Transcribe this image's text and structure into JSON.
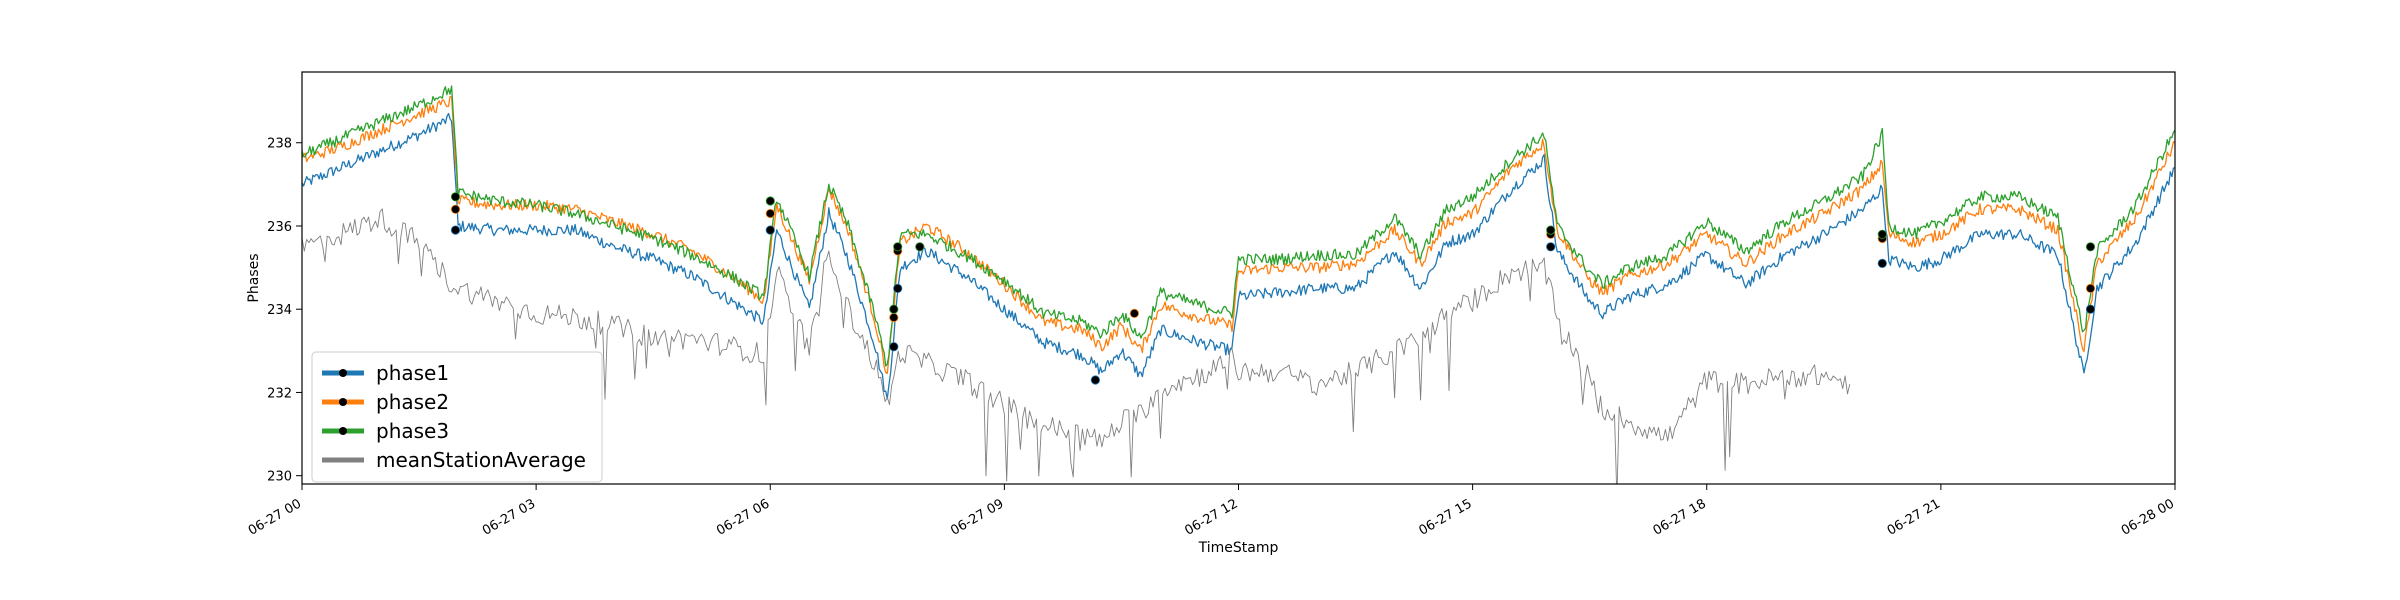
{
  "chart_data": {
    "type": "line",
    "xlabel": "TimeStamp",
    "ylabel": "Phases",
    "xlim": [
      "06-27 00:00",
      "06-28 00:00"
    ],
    "ylim": [
      229.8,
      239.7
    ],
    "x_ticks": [
      "06-27 00",
      "06-27 03",
      "06-27 06",
      "06-27 09",
      "06-27 12",
      "06-27 15",
      "06-27 18",
      "06-27 21",
      "06-28 00"
    ],
    "y_ticks": [
      230,
      232,
      234,
      236,
      238
    ],
    "legend_position": "lower-left",
    "grid": false,
    "series": [
      {
        "name": "phase1",
        "color": "#1f77b4",
        "marker": "black-dot",
        "points": [
          [
            "06-27 00:00",
            237.0
          ],
          [
            "06-27 00:30",
            237.4
          ],
          [
            "06-27 01:00",
            237.8
          ],
          [
            "06-27 01:30",
            238.2
          ],
          [
            "06-27 01:55",
            238.6
          ],
          [
            "06-27 02:00",
            236.0
          ],
          [
            "06-27 02:30",
            235.9
          ],
          [
            "06-27 03:00",
            235.9
          ],
          [
            "06-27 03:30",
            235.9
          ],
          [
            "06-27 04:00",
            235.5
          ],
          [
            "06-27 04:30",
            235.2
          ],
          [
            "06-27 05:00",
            234.8
          ],
          [
            "06-27 05:30",
            234.2
          ],
          [
            "06-27 05:55",
            233.7
          ],
          [
            "06-27 06:05",
            235.9
          ],
          [
            "06-27 06:30",
            234.0
          ],
          [
            "06-27 06:45",
            236.3
          ],
          [
            "06-27 07:00",
            235.2
          ],
          [
            "06-27 07:20",
            233.2
          ],
          [
            "06-27 07:30",
            231.8
          ],
          [
            "06-27 07:40",
            235.0
          ],
          [
            "06-27 08:00",
            235.4
          ],
          [
            "06-27 08:30",
            234.8
          ],
          [
            "06-27 09:00",
            234.0
          ],
          [
            "06-27 09:30",
            233.2
          ],
          [
            "06-27 10:00",
            232.9
          ],
          [
            "06-27 10:15",
            232.5
          ],
          [
            "06-27 10:30",
            233.0
          ],
          [
            "06-27 10:45",
            232.4
          ],
          [
            "06-27 11:00",
            233.5
          ],
          [
            "06-27 11:30",
            233.2
          ],
          [
            "06-27 11:55",
            233.0
          ],
          [
            "06-27 12:00",
            234.3
          ],
          [
            "06-27 12:30",
            234.4
          ],
          [
            "06-27 13:00",
            234.5
          ],
          [
            "06-27 13:30",
            234.5
          ],
          [
            "06-27 14:00",
            235.4
          ],
          [
            "06-27 14:20",
            234.5
          ],
          [
            "06-27 14:40",
            235.6
          ],
          [
            "06-27 15:00",
            235.8
          ],
          [
            "06-27 15:30",
            236.9
          ],
          [
            "06-27 15:55",
            237.6
          ],
          [
            "06-27 16:05",
            235.4
          ],
          [
            "06-27 16:30",
            234.2
          ],
          [
            "06-27 16:40",
            233.9
          ],
          [
            "06-27 17:00",
            234.3
          ],
          [
            "06-27 17:30",
            234.6
          ],
          [
            "06-27 18:00",
            235.3
          ],
          [
            "06-27 18:30",
            234.6
          ],
          [
            "06-27 19:00",
            235.3
          ],
          [
            "06-27 19:30",
            235.8
          ],
          [
            "06-27 20:00",
            236.4
          ],
          [
            "06-27 20:15",
            236.9
          ],
          [
            "06-27 20:20",
            235.2
          ],
          [
            "06-27 20:40",
            235.0
          ],
          [
            "06-27 21:00",
            235.2
          ],
          [
            "06-27 21:30",
            235.8
          ],
          [
            "06-27 22:00",
            235.8
          ],
          [
            "06-27 22:30",
            235.3
          ],
          [
            "06-27 22:50",
            232.4
          ],
          [
            "06-27 23:00",
            234.5
          ],
          [
            "06-27 23:30",
            235.6
          ],
          [
            "06-28 00:00",
            237.4
          ]
        ],
        "markers": [
          [
            "06-27 01:58",
            235.9
          ],
          [
            "06-27 06:00",
            235.9
          ],
          [
            "06-27 07:35",
            233.1
          ],
          [
            "06-27 07:38",
            234.5
          ],
          [
            "06-27 10:10",
            232.3
          ],
          [
            "06-27 16:00",
            235.5
          ],
          [
            "06-27 20:15",
            235.1
          ],
          [
            "06-27 22:55",
            234.0
          ]
        ]
      },
      {
        "name": "phase2",
        "color": "#ff7f0e",
        "marker": "black-dot",
        "points": [
          [
            "06-27 00:00",
            237.6
          ],
          [
            "06-27 00:30",
            237.9
          ],
          [
            "06-27 01:00",
            238.3
          ],
          [
            "06-27 01:30",
            238.7
          ],
          [
            "06-27 01:55",
            239.0
          ],
          [
            "06-27 02:00",
            236.6
          ],
          [
            "06-27 02:30",
            236.5
          ],
          [
            "06-27 03:00",
            236.5
          ],
          [
            "06-27 03:30",
            236.4
          ],
          [
            "06-27 04:00",
            236.1
          ],
          [
            "06-27 04:30",
            235.8
          ],
          [
            "06-27 05:00",
            235.4
          ],
          [
            "06-27 05:30",
            234.8
          ],
          [
            "06-27 05:55",
            234.2
          ],
          [
            "06-27 06:05",
            236.5
          ],
          [
            "06-27 06:30",
            234.7
          ],
          [
            "06-27 06:45",
            236.9
          ],
          [
            "06-27 07:00",
            235.9
          ],
          [
            "06-27 07:20",
            233.8
          ],
          [
            "06-27 07:30",
            232.4
          ],
          [
            "06-27 07:40",
            235.6
          ],
          [
            "06-27 08:00",
            236.0
          ],
          [
            "06-27 08:30",
            235.4
          ],
          [
            "06-27 09:00",
            234.6
          ],
          [
            "06-27 09:30",
            233.7
          ],
          [
            "06-27 10:00",
            233.5
          ],
          [
            "06-27 10:15",
            233.1
          ],
          [
            "06-27 10:30",
            233.6
          ],
          [
            "06-27 10:45",
            233.0
          ],
          [
            "06-27 11:00",
            234.1
          ],
          [
            "06-27 11:30",
            233.8
          ],
          [
            "06-27 11:55",
            233.6
          ],
          [
            "06-27 12:00",
            234.9
          ],
          [
            "06-27 12:30",
            235.0
          ],
          [
            "06-27 13:00",
            235.0
          ],
          [
            "06-27 13:30",
            235.1
          ],
          [
            "06-27 14:00",
            235.9
          ],
          [
            "06-27 14:20",
            235.1
          ],
          [
            "06-27 14:40",
            236.1
          ],
          [
            "06-27 15:00",
            236.3
          ],
          [
            "06-27 15:30",
            237.4
          ],
          [
            "06-27 15:55",
            238.0
          ],
          [
            "06-27 16:05",
            235.9
          ],
          [
            "06-27 16:30",
            234.7
          ],
          [
            "06-27 16:40",
            234.4
          ],
          [
            "06-27 17:00",
            234.8
          ],
          [
            "06-27 17:30",
            235.1
          ],
          [
            "06-27 18:00",
            235.8
          ],
          [
            "06-27 18:30",
            235.1
          ],
          [
            "06-27 19:00",
            235.8
          ],
          [
            "06-27 19:30",
            236.3
          ],
          [
            "06-27 20:00",
            236.9
          ],
          [
            "06-27 20:15",
            237.5
          ],
          [
            "06-27 20:20",
            235.8
          ],
          [
            "06-27 20:40",
            235.6
          ],
          [
            "06-27 21:00",
            235.8
          ],
          [
            "06-27 21:30",
            236.4
          ],
          [
            "06-27 22:00",
            236.4
          ],
          [
            "06-27 22:30",
            235.9
          ],
          [
            "06-27 22:50",
            233.0
          ],
          [
            "06-27 23:00",
            235.1
          ],
          [
            "06-27 23:30",
            236.2
          ],
          [
            "06-28 00:00",
            238.0
          ]
        ],
        "markers": [
          [
            "06-27 01:58",
            236.4
          ],
          [
            "06-27 06:00",
            236.3
          ],
          [
            "06-27 07:35",
            233.8
          ],
          [
            "06-27 07:38",
            235.4
          ],
          [
            "06-27 10:40",
            233.9
          ],
          [
            "06-27 16:00",
            235.8
          ],
          [
            "06-27 20:15",
            235.7
          ],
          [
            "06-27 22:55",
            234.5
          ]
        ]
      },
      {
        "name": "phase3",
        "color": "#2ca02c",
        "marker": "black-dot",
        "points": [
          [
            "06-27 00:00",
            237.7
          ],
          [
            "06-27 00:30",
            238.1
          ],
          [
            "06-27 01:00",
            238.5
          ],
          [
            "06-27 01:30",
            238.9
          ],
          [
            "06-27 01:55",
            239.3
          ],
          [
            "06-27 02:00",
            236.8
          ],
          [
            "06-27 02:30",
            236.6
          ],
          [
            "06-27 03:00",
            236.5
          ],
          [
            "06-27 03:30",
            236.3
          ],
          [
            "06-27 04:00",
            236.0
          ],
          [
            "06-27 04:30",
            235.7
          ],
          [
            "06-27 05:00",
            235.3
          ],
          [
            "06-27 05:30",
            234.8
          ],
          [
            "06-27 05:55",
            234.3
          ],
          [
            "06-27 06:05",
            236.7
          ],
          [
            "06-27 06:30",
            234.8
          ],
          [
            "06-27 06:45",
            237.0
          ],
          [
            "06-27 07:00",
            236.0
          ],
          [
            "06-27 07:20",
            233.9
          ],
          [
            "06-27 07:30",
            232.6
          ],
          [
            "06-27 07:40",
            235.8
          ],
          [
            "06-27 08:00",
            235.8
          ],
          [
            "06-27 08:30",
            235.3
          ],
          [
            "06-27 09:00",
            234.7
          ],
          [
            "06-27 09:30",
            233.9
          ],
          [
            "06-27 10:00",
            233.7
          ],
          [
            "06-27 10:15",
            233.4
          ],
          [
            "06-27 10:30",
            233.9
          ],
          [
            "06-27 10:45",
            233.3
          ],
          [
            "06-27 11:00",
            234.4
          ],
          [
            "06-27 11:30",
            234.1
          ],
          [
            "06-27 11:55",
            233.9
          ],
          [
            "06-27 12:00",
            235.2
          ],
          [
            "06-27 12:30",
            235.2
          ],
          [
            "06-27 13:00",
            235.3
          ],
          [
            "06-27 13:30",
            235.3
          ],
          [
            "06-27 14:00",
            236.2
          ],
          [
            "06-27 14:20",
            235.3
          ],
          [
            "06-27 14:40",
            236.4
          ],
          [
            "06-27 15:00",
            236.7
          ],
          [
            "06-27 15:30",
            237.6
          ],
          [
            "06-27 15:55",
            238.2
          ],
          [
            "06-27 16:05",
            236.0
          ],
          [
            "06-27 16:30",
            234.9
          ],
          [
            "06-27 16:40",
            234.6
          ],
          [
            "06-27 17:00",
            235.0
          ],
          [
            "06-27 17:30",
            235.3
          ],
          [
            "06-27 18:00",
            236.1
          ],
          [
            "06-27 18:30",
            235.4
          ],
          [
            "06-27 19:00",
            236.1
          ],
          [
            "06-27 19:30",
            236.6
          ],
          [
            "06-27 20:00",
            237.2
          ],
          [
            "06-27 20:15",
            238.2
          ],
          [
            "06-27 20:20",
            236.0
          ],
          [
            "06-27 20:40",
            235.8
          ],
          [
            "06-27 21:00",
            236.1
          ],
          [
            "06-27 21:30",
            236.7
          ],
          [
            "06-27 22:00",
            236.7
          ],
          [
            "06-27 22:30",
            236.2
          ],
          [
            "06-27 22:50",
            233.4
          ],
          [
            "06-27 23:00",
            235.4
          ],
          [
            "06-27 23:30",
            236.5
          ],
          [
            "06-28 00:00",
            238.3
          ]
        ],
        "markers": [
          [
            "06-27 01:58",
            236.7
          ],
          [
            "06-27 06:00",
            236.6
          ],
          [
            "06-27 07:35",
            234.0
          ],
          [
            "06-27 07:38",
            235.5
          ],
          [
            "06-27 07:55",
            235.5
          ],
          [
            "06-27 16:00",
            235.9
          ],
          [
            "06-27 20:15",
            235.8
          ],
          [
            "06-27 22:55",
            235.5
          ]
        ]
      },
      {
        "name": "meanStationAverage",
        "color": "#808080",
        "marker": "none",
        "points": [
          [
            "06-27 00:00",
            235.5
          ],
          [
            "06-27 00:30",
            235.8
          ],
          [
            "06-27 01:00",
            236.2
          ],
          [
            "06-27 01:30",
            235.6
          ],
          [
            "06-27 01:55",
            234.6
          ],
          [
            "06-27 02:00",
            234.5
          ],
          [
            "06-27 02:30",
            234.2
          ],
          [
            "06-27 03:00",
            233.9
          ],
          [
            "06-27 03:30",
            233.8
          ],
          [
            "06-27 04:00",
            233.6
          ],
          [
            "06-27 04:30",
            233.3
          ],
          [
            "06-27 05:00",
            233.3
          ],
          [
            "06-27 05:30",
            233.1
          ],
          [
            "06-27 05:55",
            232.9
          ],
          [
            "06-27 06:05",
            234.9
          ],
          [
            "06-27 06:30",
            233.0
          ],
          [
            "06-27 06:45",
            235.5
          ],
          [
            "06-27 07:00",
            234.0
          ],
          [
            "06-27 07:20",
            232.7
          ],
          [
            "06-27 07:30",
            231.7
          ],
          [
            "06-27 07:40",
            233.0
          ],
          [
            "06-27 08:00",
            232.7
          ],
          [
            "06-27 08:30",
            232.3
          ],
          [
            "06-27 09:00",
            231.7
          ],
          [
            "06-27 09:30",
            231.2
          ],
          [
            "06-27 10:00",
            231.0
          ],
          [
            "06-27 10:15",
            230.8
          ],
          [
            "06-27 10:30",
            231.3
          ],
          [
            "06-27 10:45",
            231.5
          ],
          [
            "06-27 11:00",
            232.1
          ],
          [
            "06-27 11:30",
            232.4
          ],
          [
            "06-27 11:55",
            232.8
          ],
          [
            "06-27 12:00",
            232.5
          ],
          [
            "06-27 12:30",
            232.5
          ],
          [
            "06-27 13:00",
            232.2
          ],
          [
            "06-27 13:30",
            232.5
          ],
          [
            "06-27 14:00",
            233.0
          ],
          [
            "06-27 14:20",
            233.3
          ],
          [
            "06-27 14:40",
            233.9
          ],
          [
            "06-27 15:00",
            234.2
          ],
          [
            "06-27 15:30",
            234.9
          ],
          [
            "06-27 15:55",
            235.0
          ],
          [
            "06-27 16:05",
            233.8
          ],
          [
            "06-27 16:30",
            232.3
          ],
          [
            "06-27 16:40",
            231.6
          ],
          [
            "06-27 17:00",
            231.3
          ],
          [
            "06-27 17:30",
            230.9
          ],
          [
            "06-27 18:00",
            232.3
          ],
          [
            "06-27 18:30",
            232.2
          ],
          [
            "06-27 19:00",
            232.4
          ],
          [
            "06-27 19:30",
            232.4
          ],
          [
            "06-27 19:50",
            232.2
          ]
        ]
      }
    ]
  }
}
